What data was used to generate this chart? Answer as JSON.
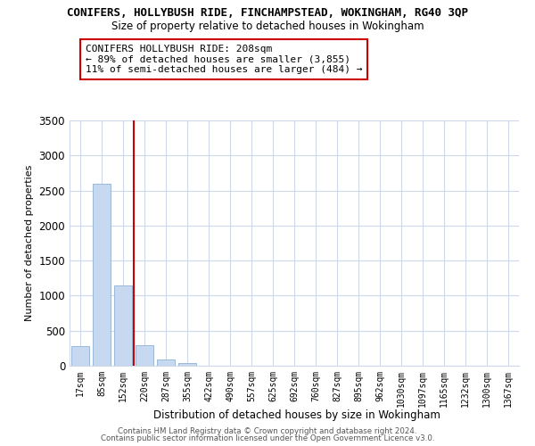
{
  "title": "CONIFERS, HOLLYBUSH RIDE, FINCHAMPSTEAD, WOKINGHAM, RG40 3QP",
  "subtitle": "Size of property relative to detached houses in Wokingham",
  "xlabel": "Distribution of detached houses by size in Wokingham",
  "ylabel": "Number of detached properties",
  "bar_labels": [
    "17sqm",
    "85sqm",
    "152sqm",
    "220sqm",
    "287sqm",
    "355sqm",
    "422sqm",
    "490sqm",
    "557sqm",
    "625sqm",
    "692sqm",
    "760sqm",
    "827sqm",
    "895sqm",
    "962sqm",
    "1030sqm",
    "1097sqm",
    "1165sqm",
    "1232sqm",
    "1300sqm",
    "1367sqm"
  ],
  "bar_values": [
    280,
    2590,
    1140,
    290,
    85,
    40,
    0,
    0,
    0,
    0,
    0,
    0,
    0,
    0,
    0,
    0,
    0,
    0,
    0,
    0,
    0
  ],
  "bar_color": "#c6d9f0",
  "bar_edge_color": "#9ab8d8",
  "ylim": [
    0,
    3500
  ],
  "yticks": [
    0,
    500,
    1000,
    1500,
    2000,
    2500,
    3000,
    3500
  ],
  "property_line_x": 2.5,
  "property_line_color": "#cc0000",
  "annotation_title": "CONIFERS HOLLYBUSH RIDE: 208sqm",
  "annotation_line1": "← 89% of detached houses are smaller (3,855)",
  "annotation_line2": "11% of semi-detached houses are larger (484) →",
  "annotation_box_color": "#cc0000",
  "footer1": "Contains HM Land Registry data © Crown copyright and database right 2024.",
  "footer2": "Contains public sector information licensed under the Open Government Licence v3.0.",
  "bg_color": "#ffffff",
  "grid_color": "#cdd8e8"
}
